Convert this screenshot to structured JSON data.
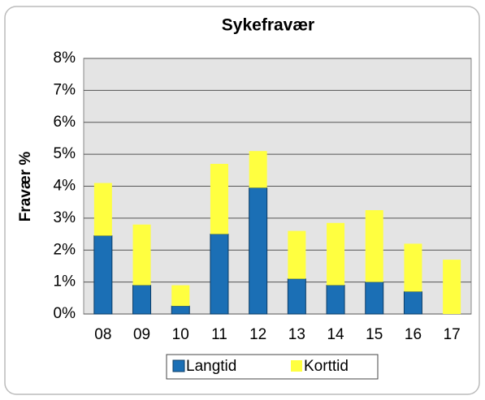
{
  "chart_data": {
    "type": "stacked_bar",
    "title": "Sykefravær",
    "y_label": "Fravær %",
    "categories": [
      "08",
      "09",
      "10",
      "11",
      "12",
      "13",
      "14",
      "15",
      "16",
      "17"
    ],
    "series": [
      {
        "name": "Langtid",
        "color": "#1b6fb5",
        "values": [
          2.45,
          0.9,
          0.25,
          2.5,
          3.95,
          1.1,
          0.9,
          1.0,
          0.7,
          0
        ]
      },
      {
        "name": "Korttid",
        "color": "#ffff40",
        "values": [
          1.65,
          1.9,
          0.65,
          2.2,
          1.15,
          1.5,
          1.95,
          2.25,
          1.5,
          1.7
        ]
      }
    ],
    "ylim": [
      0,
      8
    ],
    "yticks": [
      {
        "value": 0,
        "label": "0%"
      },
      {
        "value": 1,
        "label": "1%"
      },
      {
        "value": 2,
        "label": "2%"
      },
      {
        "value": 3,
        "label": "3%"
      },
      {
        "value": 4,
        "label": "4%"
      },
      {
        "value": 5,
        "label": "5%"
      },
      {
        "value": 6,
        "label": "6%"
      },
      {
        "value": 7,
        "label": "7%"
      },
      {
        "value": 8,
        "label": "8%"
      }
    ],
    "grid": true,
    "legend": "bottom"
  }
}
